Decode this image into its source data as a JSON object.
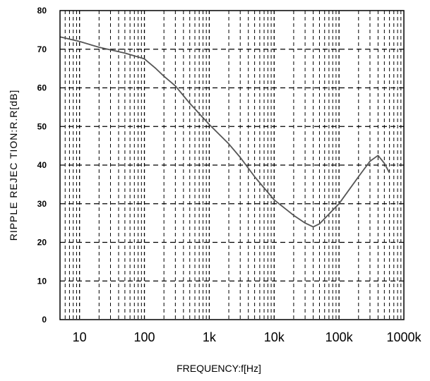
{
  "chart_data": {
    "type": "line",
    "xlabel": "FREQUENCY:f[Hz]",
    "ylabel": "RIPPLE REJEC TION:R.R[dB]",
    "xscale": "log",
    "xlim": [
      5,
      1000000
    ],
    "ylim": [
      0,
      80
    ],
    "x_tick_values": [
      10,
      100,
      1000,
      10000,
      100000,
      1000000
    ],
    "x_tick_labels": [
      "10",
      "100",
      "1k",
      "10k",
      "100k",
      "1000k"
    ],
    "y_tick_values": [
      0,
      10,
      20,
      30,
      40,
      50,
      60,
      70,
      80
    ],
    "y_tick_labels": [
      "0",
      "10",
      "20",
      "30",
      "40",
      "50",
      "60",
      "70",
      "80"
    ],
    "grid": true,
    "line_color": "#555555",
    "series": [
      {
        "x": [
          5,
          10,
          20,
          50,
          100,
          150,
          200,
          300,
          500,
          1000,
          2000,
          3000,
          5000,
          10000,
          20000,
          30000,
          40000,
          50000,
          100000,
          200000,
          300000,
          400000,
          500000,
          600000
        ],
        "y": [
          73.2,
          72,
          70.5,
          69,
          67.5,
          65,
          63,
          60.5,
          56,
          50.5,
          45.5,
          42,
          37,
          31,
          27,
          25,
          24,
          24.8,
          30,
          37,
          41,
          42.5,
          40.5,
          38
        ]
      }
    ]
  }
}
